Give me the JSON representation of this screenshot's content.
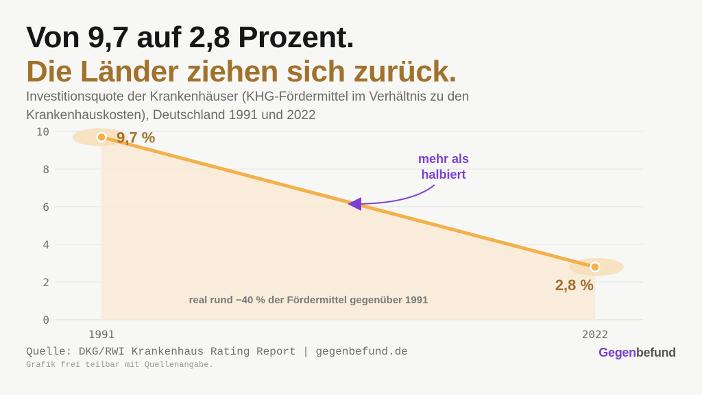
{
  "title_line1": "Von 9,7 auf 2,8 Prozent.",
  "title_line2": "Die Länder ziehen sich zurück.",
  "subtitle": "Investitionsquote der Krankenhäuser (KHG-Fördermittel im Verhältnis zu den Krankenhauskosten), Deutschland 1991 und 2022",
  "source": "Quelle: DKG/RWI Krankenhaus Rating Report | gegenbefund.de",
  "note": "Grafik frei teilbar mit Quellenangabe.",
  "logo": {
    "part1": "Gegen",
    "part2": "befund"
  },
  "colors": {
    "line": "#f4b04a",
    "area": "#faead6",
    "value_label": "#a0722c",
    "annotation": "#7b3fd0",
    "grid": "#e3e3e3",
    "axis_text": "#6f6f6f"
  },
  "chart_data": {
    "type": "line",
    "x": [
      "1991",
      "2022"
    ],
    "series": [
      {
        "values": [
          9.7,
          2.8
        ]
      }
    ],
    "data_labels": [
      "9,7 %",
      "2,8 %"
    ],
    "y_ticks": [
      0,
      2,
      4,
      6,
      8,
      10
    ],
    "ylim": [
      0,
      10
    ],
    "grid": true,
    "area_fill": true,
    "annotations": [
      {
        "text_lines": [
          "mehr als",
          "halbiert"
        ],
        "kind": "arrow"
      },
      {
        "text": "real rund −40 % der Fördermittel gegenüber 1991",
        "kind": "label"
      }
    ]
  }
}
